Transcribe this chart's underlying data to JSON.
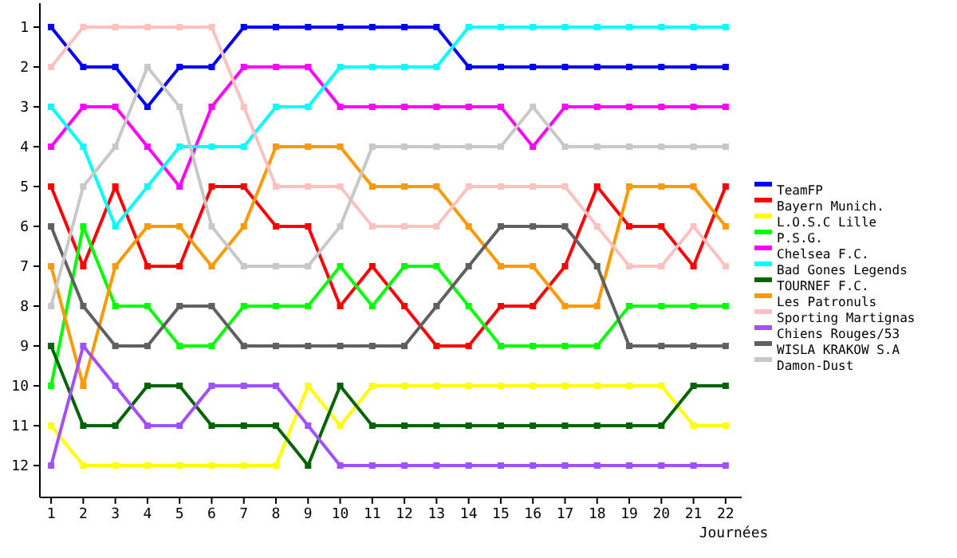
{
  "chart_data": {
    "type": "line",
    "xlabel": "Journées",
    "x": [
      1,
      2,
      3,
      4,
      5,
      6,
      7,
      8,
      9,
      10,
      11,
      12,
      13,
      14,
      15,
      16,
      17,
      18,
      19,
      20,
      21,
      22
    ],
    "xlim": [
      0.65,
      22.5
    ],
    "xticks": [
      1,
      2,
      3,
      4,
      5,
      6,
      7,
      8,
      9,
      10,
      11,
      12,
      13,
      14,
      15,
      16,
      17,
      18,
      19,
      20,
      21,
      22
    ],
    "ylim": [
      12.8,
      0.4
    ],
    "yticks": [
      1,
      2,
      3,
      4,
      5,
      6,
      7,
      8,
      9,
      10,
      11,
      12
    ],
    "marker": "square",
    "line_style": "solid",
    "legend": "right",
    "grid": false,
    "series": [
      {
        "name": "TeamFP",
        "color": "#0000ff",
        "values": [
          1,
          2,
          2,
          3,
          2,
          2,
          1,
          1,
          1,
          1,
          1,
          1,
          1,
          2,
          2,
          2,
          2,
          2,
          2,
          2,
          2,
          2
        ]
      },
      {
        "name": "Bayern Munich.",
        "color": "#ff0000",
        "values": [
          5,
          7,
          5,
          7,
          7,
          5,
          5,
          6,
          6,
          8,
          7,
          8,
          9,
          9,
          8,
          8,
          7,
          5,
          6,
          6,
          7,
          5
        ]
      },
      {
        "name": "L.O.S.C Lille",
        "color": "#ffff00",
        "values": [
          11,
          12,
          12,
          12,
          12,
          12,
          12,
          12,
          10,
          11,
          10,
          10,
          10,
          10,
          10,
          10,
          10,
          10,
          10,
          10,
          11,
          11
        ]
      },
      {
        "name": "P.S.G.",
        "color": "#00ff00",
        "values": [
          10,
          6,
          8,
          8,
          9,
          9,
          8,
          8,
          8,
          7,
          8,
          7,
          7,
          8,
          9,
          9,
          9,
          9,
          8,
          8,
          8,
          8
        ]
      },
      {
        "name": "Chelsea F.C.",
        "color": "#ff00ff",
        "values": [
          4,
          3,
          3,
          4,
          5,
          3,
          2,
          2,
          2,
          3,
          3,
          3,
          3,
          3,
          3,
          4,
          3,
          3,
          3,
          3,
          3,
          3
        ]
      },
      {
        "name": "Bad Gones Legends",
        "color": "#00ffff",
        "values": [
          3,
          4,
          6,
          5,
          4,
          4,
          4,
          3,
          3,
          2,
          2,
          2,
          2,
          1,
          1,
          1,
          1,
          1,
          1,
          1,
          1,
          1
        ]
      },
      {
        "name": "TOURNEF F.C.",
        "color": "#006400",
        "values": [
          9,
          11,
          11,
          10,
          10,
          11,
          11,
          11,
          12,
          10,
          11,
          11,
          11,
          11,
          11,
          11,
          11,
          11,
          11,
          11,
          10,
          10
        ]
      },
      {
        "name": "Les Patronuls",
        "color": "#ff9900",
        "values": [
          7,
          10,
          7,
          6,
          6,
          7,
          6,
          4,
          4,
          4,
          5,
          5,
          5,
          6,
          7,
          7,
          8,
          8,
          5,
          5,
          5,
          6
        ]
      },
      {
        "name": "Sporting Martignas",
        "color": "#ffc0c0",
        "values": [
          2,
          1,
          1,
          1,
          1,
          1,
          3,
          5,
          5,
          5,
          6,
          6,
          6,
          5,
          5,
          5,
          5,
          6,
          7,
          7,
          6,
          7
        ]
      },
      {
        "name": "Chiens Rouges/53",
        "color": "#a050ff",
        "values": [
          12,
          9,
          10,
          11,
          11,
          10,
          10,
          10,
          11,
          12,
          12,
          12,
          12,
          12,
          12,
          12,
          12,
          12,
          12,
          12,
          12,
          12
        ]
      },
      {
        "name": "WISLA KRAKOW S.A",
        "color": "#606060",
        "values": [
          6,
          8,
          9,
          9,
          8,
          8,
          9,
          9,
          9,
          9,
          9,
          9,
          8,
          7,
          6,
          6,
          6,
          7,
          9,
          9,
          9,
          9
        ]
      },
      {
        "name": "Damon-Dust",
        "color": "#c8c8c8",
        "values": [
          8,
          5,
          4,
          2,
          3,
          6,
          7,
          7,
          7,
          6,
          4,
          4,
          4,
          4,
          4,
          3,
          4,
          4,
          4,
          4,
          4,
          4
        ]
      }
    ]
  }
}
